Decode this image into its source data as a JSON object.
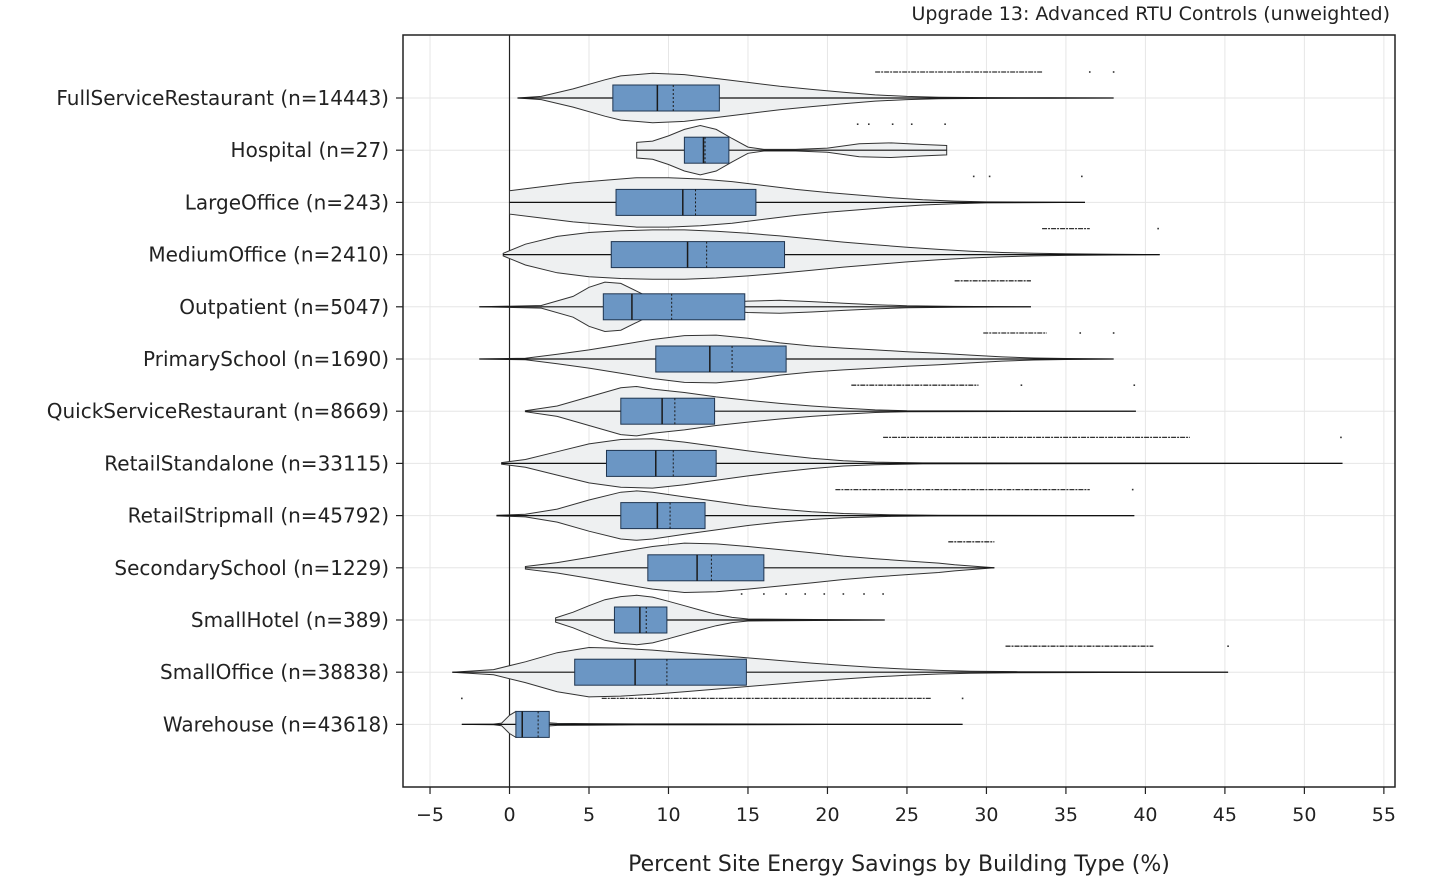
{
  "chart_data": {
    "type": "violin",
    "title": "Upgrade 13: Advanced RTU Controls (unweighted)",
    "xlabel": "Percent Site Energy Savings by Building Type (%)",
    "ylabel": "",
    "xlim": [
      -6.7,
      55.7
    ],
    "xticks": [
      -5,
      0,
      5,
      10,
      15,
      20,
      25,
      30,
      35,
      40,
      45,
      50,
      55
    ],
    "grid": true,
    "reference_line": 0,
    "colors": {
      "violin_fill": "#eef0f1",
      "violin_edge": "#333333",
      "box_fill": "#6b96c4",
      "box_edge": "#1f3550",
      "grid": "#e6e6e6"
    },
    "categories": [
      "FullServiceRestaurant (n=14443)",
      "Hospital (n=27)",
      "LargeOffice (n=243)",
      "MediumOffice (n=2410)",
      "Outpatient (n=5047)",
      "PrimarySchool (n=1690)",
      "QuickServiceRestaurant (n=8669)",
      "RetailStandalone (n=33115)",
      "RetailStripmall (n=45792)",
      "SecondarySchool (n=1229)",
      "SmallHotel (n=389)",
      "SmallOffice (n=38838)",
      "Warehouse (n=43618)"
    ],
    "series": [
      {
        "min": 0.5,
        "q1": 6.5,
        "median": 9.3,
        "mean": 10.3,
        "q3": 13.2,
        "max": 38.0,
        "outlier_band": [
          23.0,
          33.5
        ],
        "outliers": [
          36.5,
          38.0
        ],
        "density": [
          [
            0.5,
            0
          ],
          [
            2,
            0.06
          ],
          [
            4,
            0.35
          ],
          [
            6,
            0.7
          ],
          [
            7,
            0.85
          ],
          [
            9,
            0.95
          ],
          [
            11,
            0.9
          ],
          [
            13,
            0.75
          ],
          [
            15,
            0.6
          ],
          [
            17,
            0.45
          ],
          [
            19,
            0.33
          ],
          [
            21,
            0.22
          ],
          [
            23,
            0.12
          ],
          [
            25,
            0.06
          ],
          [
            27,
            0.03
          ],
          [
            30,
            0.015
          ],
          [
            34,
            0.008
          ],
          [
            38,
            0
          ]
        ]
      },
      {
        "min": 8.0,
        "q1": 11.0,
        "median": 12.2,
        "mean": 12.3,
        "q3": 13.8,
        "max": 27.5,
        "outlier_band": [],
        "outliers": [
          21.9,
          22.6,
          24.1,
          25.3,
          27.4
        ],
        "density": [
          [
            8,
            0.3
          ],
          [
            9,
            0.35
          ],
          [
            10,
            0.55
          ],
          [
            11,
            0.8
          ],
          [
            12,
            0.95
          ],
          [
            13,
            0.8
          ],
          [
            14,
            0.45
          ],
          [
            15,
            0.12
          ],
          [
            16,
            0.03
          ],
          [
            18,
            0.03
          ],
          [
            20,
            0.08
          ],
          [
            22,
            0.25
          ],
          [
            24,
            0.28
          ],
          [
            26,
            0.22
          ],
          [
            27.5,
            0.18
          ]
        ]
      },
      {
        "min": 0.0,
        "q1": 6.7,
        "median": 10.9,
        "mean": 11.7,
        "q3": 15.5,
        "max": 36.2,
        "outlier_band": [],
        "outliers": [
          29.2,
          30.2,
          36.0
        ],
        "density": [
          [
            0,
            0.45
          ],
          [
            2,
            0.6
          ],
          [
            4,
            0.75
          ],
          [
            6,
            0.85
          ],
          [
            8,
            0.95
          ],
          [
            10,
            0.95
          ],
          [
            12,
            0.9
          ],
          [
            14,
            0.8
          ],
          [
            16,
            0.65
          ],
          [
            18,
            0.5
          ],
          [
            20,
            0.38
          ],
          [
            22,
            0.28
          ],
          [
            24,
            0.18
          ],
          [
            26,
            0.1
          ],
          [
            28,
            0.05
          ],
          [
            30,
            0.02
          ],
          [
            36.2,
            0
          ]
        ]
      },
      {
        "min": -0.4,
        "q1": 6.4,
        "median": 11.2,
        "mean": 12.4,
        "q3": 17.3,
        "max": 40.9,
        "outlier_band": [
          33.5,
          36.5
        ],
        "outliers": [
          40.8
        ],
        "density": [
          [
            -0.4,
            0.05
          ],
          [
            1,
            0.4
          ],
          [
            3,
            0.7
          ],
          [
            5,
            0.85
          ],
          [
            7,
            0.92
          ],
          [
            9,
            0.95
          ],
          [
            11,
            0.95
          ],
          [
            13,
            0.9
          ],
          [
            15,
            0.82
          ],
          [
            17,
            0.72
          ],
          [
            19,
            0.6
          ],
          [
            21,
            0.48
          ],
          [
            23,
            0.38
          ],
          [
            25,
            0.28
          ],
          [
            27,
            0.2
          ],
          [
            29,
            0.13
          ],
          [
            31,
            0.08
          ],
          [
            33,
            0.05
          ],
          [
            35,
            0.03
          ],
          [
            38,
            0.015
          ],
          [
            40.9,
            0
          ]
        ]
      },
      {
        "min": -1.9,
        "q1": 5.9,
        "median": 7.7,
        "mean": 10.2,
        "q3": 14.8,
        "max": 32.8,
        "outlier_band": [
          28.0,
          32.8
        ],
        "outliers": [],
        "density": [
          [
            -1.9,
            0
          ],
          [
            2,
            0.05
          ],
          [
            4,
            0.4
          ],
          [
            5,
            0.75
          ],
          [
            6,
            0.95
          ],
          [
            7,
            0.9
          ],
          [
            8,
            0.6
          ],
          [
            9,
            0.3
          ],
          [
            10,
            0.15
          ],
          [
            11,
            0.1
          ],
          [
            12,
            0.12
          ],
          [
            13,
            0.15
          ],
          [
            15,
            0.22
          ],
          [
            17,
            0.25
          ],
          [
            19,
            0.2
          ],
          [
            21,
            0.14
          ],
          [
            23,
            0.08
          ],
          [
            25,
            0.04
          ],
          [
            28,
            0.015
          ],
          [
            32.8,
            0
          ]
        ]
      },
      {
        "min": -1.9,
        "q1": 9.2,
        "median": 12.6,
        "mean": 14.0,
        "q3": 17.4,
        "max": 38.0,
        "outlier_band": [
          29.8,
          33.8
        ],
        "outliers": [
          35.9,
          38.0
        ],
        "density": [
          [
            -1.9,
            0
          ],
          [
            1,
            0.03
          ],
          [
            3,
            0.18
          ],
          [
            5,
            0.35
          ],
          [
            7,
            0.55
          ],
          [
            9,
            0.75
          ],
          [
            11,
            0.9
          ],
          [
            13,
            0.92
          ],
          [
            15,
            0.8
          ],
          [
            17,
            0.62
          ],
          [
            19,
            0.5
          ],
          [
            21,
            0.42
          ],
          [
            23,
            0.35
          ],
          [
            25,
            0.28
          ],
          [
            27,
            0.22
          ],
          [
            29,
            0.15
          ],
          [
            31,
            0.08
          ],
          [
            33,
            0.04
          ],
          [
            35,
            0.02
          ],
          [
            38,
            0
          ]
        ]
      },
      {
        "min": 1.0,
        "q1": 7.0,
        "median": 9.6,
        "mean": 10.4,
        "q3": 12.9,
        "max": 39.4,
        "outlier_band": [
          21.5,
          29.5
        ],
        "outliers": [
          32.2,
          39.3
        ],
        "density": [
          [
            1,
            0.02
          ],
          [
            3,
            0.2
          ],
          [
            5,
            0.55
          ],
          [
            7,
            0.9
          ],
          [
            8,
            0.95
          ],
          [
            9,
            0.85
          ],
          [
            11,
            0.72
          ],
          [
            13,
            0.55
          ],
          [
            15,
            0.42
          ],
          [
            17,
            0.3
          ],
          [
            19,
            0.2
          ],
          [
            21,
            0.12
          ],
          [
            23,
            0.05
          ],
          [
            25,
            0.02
          ],
          [
            39.4,
            0
          ]
        ]
      },
      {
        "min": -0.5,
        "q1": 6.1,
        "median": 9.2,
        "mean": 10.3,
        "q3": 13.0,
        "max": 52.4,
        "outlier_band": [
          23.5,
          42.8
        ],
        "outliers": [
          52.3
        ],
        "density": [
          [
            -0.5,
            0.03
          ],
          [
            1,
            0.15
          ],
          [
            3,
            0.45
          ],
          [
            5,
            0.75
          ],
          [
            7,
            0.92
          ],
          [
            9,
            0.95
          ],
          [
            11,
            0.82
          ],
          [
            13,
            0.65
          ],
          [
            15,
            0.48
          ],
          [
            17,
            0.33
          ],
          [
            19,
            0.2
          ],
          [
            21,
            0.1
          ],
          [
            23,
            0.05
          ],
          [
            26,
            0.02
          ],
          [
            52.4,
            0
          ]
        ]
      },
      {
        "min": -0.8,
        "q1": 7.0,
        "median": 9.3,
        "mean": 10.1,
        "q3": 12.3,
        "max": 39.3,
        "outlier_band": [
          20.5,
          36.5
        ],
        "outliers": [
          39.2
        ],
        "density": [
          [
            -0.8,
            0.01
          ],
          [
            1,
            0.05
          ],
          [
            3,
            0.25
          ],
          [
            5,
            0.6
          ],
          [
            7,
            0.9
          ],
          [
            8,
            0.95
          ],
          [
            9,
            0.9
          ],
          [
            11,
            0.72
          ],
          [
            13,
            0.55
          ],
          [
            15,
            0.38
          ],
          [
            17,
            0.25
          ],
          [
            19,
            0.15
          ],
          [
            21,
            0.08
          ],
          [
            24,
            0.03
          ],
          [
            27,
            0.01
          ],
          [
            39.3,
            0
          ]
        ]
      },
      {
        "min": 1.0,
        "q1": 8.7,
        "median": 11.8,
        "mean": 12.7,
        "q3": 16.0,
        "max": 30.5,
        "outlier_band": [
          27.6,
          30.5
        ],
        "outliers": [],
        "density": [
          [
            1,
            0.05
          ],
          [
            3,
            0.2
          ],
          [
            5,
            0.4
          ],
          [
            7,
            0.62
          ],
          [
            9,
            0.82
          ],
          [
            11,
            0.95
          ],
          [
            13,
            0.92
          ],
          [
            15,
            0.82
          ],
          [
            17,
            0.7
          ],
          [
            19,
            0.58
          ],
          [
            21,
            0.45
          ],
          [
            23,
            0.35
          ],
          [
            25,
            0.26
          ],
          [
            27,
            0.18
          ],
          [
            28,
            0.12
          ],
          [
            30.5,
            0
          ]
        ]
      },
      {
        "min": 2.9,
        "q1": 6.6,
        "median": 8.2,
        "mean": 8.6,
        "q3": 9.9,
        "max": 23.6,
        "outlier_band": [],
        "outliers": [
          14.6,
          16.0,
          17.4,
          18.6,
          19.8,
          21.0,
          22.3,
          23.5
        ],
        "density": [
          [
            2.9,
            0.08
          ],
          [
            4,
            0.3
          ],
          [
            5,
            0.55
          ],
          [
            6,
            0.78
          ],
          [
            7,
            0.9
          ],
          [
            8,
            0.95
          ],
          [
            9,
            0.88
          ],
          [
            10,
            0.72
          ],
          [
            11,
            0.55
          ],
          [
            12,
            0.38
          ],
          [
            13,
            0.22
          ],
          [
            14,
            0.1
          ],
          [
            15,
            0.04
          ],
          [
            23.6,
            0
          ]
        ]
      },
      {
        "min": -3.6,
        "q1": 4.1,
        "median": 7.9,
        "mean": 9.9,
        "q3": 14.9,
        "max": 45.2,
        "outlier_band": [
          31.2,
          40.5
        ],
        "outliers": [
          45.2
        ],
        "density": [
          [
            -3.6,
            0
          ],
          [
            -1,
            0.1
          ],
          [
            1,
            0.4
          ],
          [
            3,
            0.75
          ],
          [
            5,
            0.95
          ],
          [
            7,
            0.92
          ],
          [
            9,
            0.85
          ],
          [
            11,
            0.75
          ],
          [
            13,
            0.65
          ],
          [
            15,
            0.55
          ],
          [
            17,
            0.45
          ],
          [
            19,
            0.35
          ],
          [
            21,
            0.26
          ],
          [
            23,
            0.18
          ],
          [
            25,
            0.12
          ],
          [
            27,
            0.07
          ],
          [
            29,
            0.04
          ],
          [
            32,
            0.02
          ],
          [
            45.2,
            0
          ]
        ]
      },
      {
        "min": -3.0,
        "q1": 0.4,
        "median": 0.8,
        "mean": 1.8,
        "q3": 2.5,
        "max": 28.5,
        "outlier_band": [
          5.8,
          26.5
        ],
        "outliers": [
          -3.0,
          28.5
        ],
        "density": [
          [
            -3,
            0
          ],
          [
            -1,
            0.01
          ],
          [
            -0.5,
            0.05
          ],
          [
            0,
            0.35
          ],
          [
            0.4,
            0.5
          ],
          [
            0.8,
            0.45
          ],
          [
            1.2,
            0.25
          ],
          [
            2,
            0.08
          ],
          [
            3,
            0.04
          ],
          [
            5,
            0.03
          ],
          [
            8,
            0.02
          ],
          [
            12,
            0.02
          ],
          [
            16,
            0.015
          ],
          [
            20,
            0.005
          ],
          [
            28.5,
            0
          ]
        ]
      }
    ]
  }
}
